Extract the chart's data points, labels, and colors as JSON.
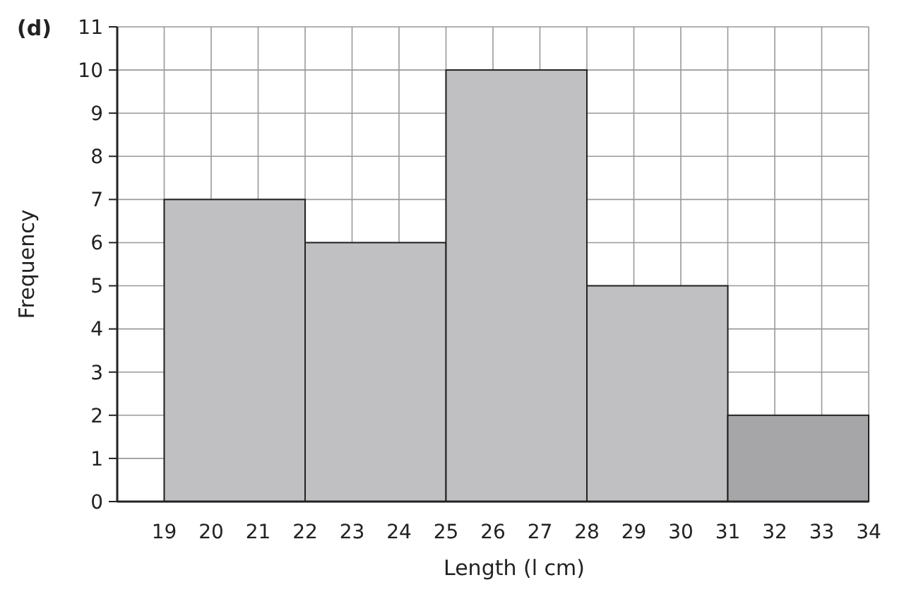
{
  "chart_data": {
    "type": "histogram",
    "title": "(d)",
    "xlabel": "Length (l cm)",
    "ylabel": "Frequency",
    "bins": [
      19,
      22,
      25,
      28,
      31,
      34
    ],
    "values": [
      7,
      6,
      10,
      5,
      2
    ],
    "colors": [
      "#c0c0c2",
      "#c0c0c2",
      "#c0c0c2",
      "#c0c0c2",
      "#a6a6a8"
    ],
    "xlim": [
      18,
      34
    ],
    "xticks": [
      19,
      20,
      21,
      22,
      23,
      24,
      25,
      26,
      27,
      28,
      29,
      30,
      31,
      32,
      33,
      34
    ],
    "ylim": [
      0,
      11
    ],
    "yticks": [
      0,
      1,
      2,
      3,
      4,
      5,
      6,
      7,
      8,
      9,
      10,
      11
    ],
    "grid": true
  }
}
